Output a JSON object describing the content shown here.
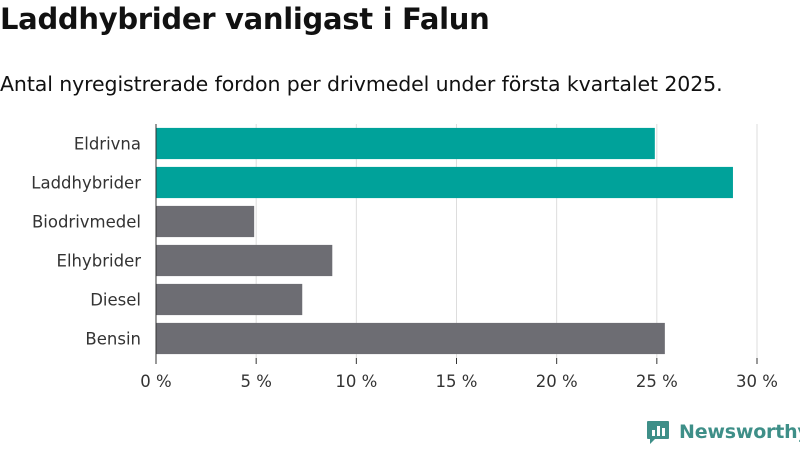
{
  "title": "Laddhybrider vanligast i Falun",
  "subtitle": "Antal nyregistrerade fordon per drivmedel under första kvartalet 2025.",
  "brand": {
    "name": "Newsworthy",
    "logo_icon": "newsworthy-logo-icon"
  },
  "colors": {
    "highlight": "#00a29a",
    "default": "#6d6d73",
    "brand": "#3e8f88"
  },
  "chart_data": {
    "type": "bar",
    "orientation": "horizontal",
    "categories": [
      "Eldrivna",
      "Laddhybrider",
      "Biodrivmedel",
      "Elhybrider",
      "Diesel",
      "Bensin"
    ],
    "values": [
      24.9,
      28.8,
      4.9,
      8.8,
      7.3,
      25.4
    ],
    "highlighted": [
      true,
      true,
      false,
      false,
      false,
      false
    ],
    "xlim": [
      0,
      30
    ],
    "xticks": [
      0,
      5,
      10,
      15,
      20,
      25,
      30
    ],
    "xtick_labels": [
      "0 %",
      "5 %",
      "10 %",
      "15 %",
      "20 %",
      "25 %",
      "30 %"
    ],
    "grid": "vertical",
    "xlabel": "",
    "ylabel": ""
  }
}
